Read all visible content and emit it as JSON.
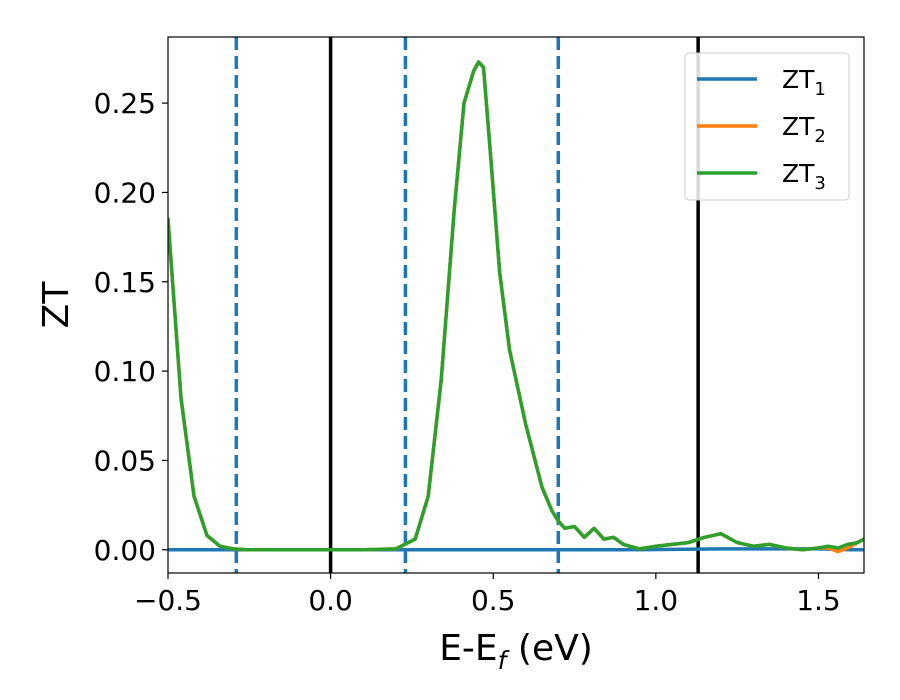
{
  "chart_data": {
    "type": "line",
    "xlabel": {
      "base": "E-E",
      "sub": "f",
      "suffix": " (eV)"
    },
    "ylabel": "ZT",
    "xlim": [
      -0.5,
      1.64
    ],
    "ylim": [
      -0.013,
      0.287
    ],
    "xticks": [
      {
        "value": -0.5,
        "label": "−0.5"
      },
      {
        "value": 0.0,
        "label": "0.0"
      },
      {
        "value": 0.5,
        "label": "0.5"
      },
      {
        "value": 1.0,
        "label": "1.0"
      },
      {
        "value": 1.5,
        "label": "1.5"
      }
    ],
    "yticks": [
      {
        "value": 0.0,
        "label": "0.00"
      },
      {
        "value": 0.05,
        "label": "0.05"
      },
      {
        "value": 0.1,
        "label": "0.10"
      },
      {
        "value": 0.15,
        "label": "0.15"
      },
      {
        "value": 0.2,
        "label": "0.20"
      },
      {
        "value": 0.25,
        "label": "0.25"
      }
    ],
    "grid": false,
    "legend_position": "top-right",
    "vlines": [
      {
        "x": -0.29,
        "style": "dashed",
        "color": "#1f77b4"
      },
      {
        "x": 0.0,
        "style": "solid",
        "color": "#000000"
      },
      {
        "x": 0.23,
        "style": "dashed",
        "color": "#1f77b4"
      },
      {
        "x": 0.7,
        "style": "dashed",
        "color": "#1f77b4"
      },
      {
        "x": 1.13,
        "style": "solid",
        "color": "#000000"
      }
    ],
    "series": [
      {
        "name": {
          "base": "ZT",
          "sub": "1"
        },
        "color": "#1f77b4",
        "x": [
          -0.5,
          -0.3,
          0.0,
          0.3,
          0.6,
          0.9,
          1.2,
          1.5,
          1.6,
          1.64
        ],
        "y": [
          0.0,
          0.0,
          0.0,
          0.0,
          0.0,
          0.0,
          0.0005,
          0.0005,
          0.0,
          0.0
        ]
      },
      {
        "name": {
          "base": "ZT",
          "sub": "2"
        },
        "color": "#ff7f0e",
        "x": [
          -0.5,
          -0.46,
          -0.42,
          -0.38,
          -0.34,
          -0.3,
          -0.26,
          -0.2,
          -0.1,
          0.0,
          0.1,
          0.2,
          0.26,
          0.3,
          0.34,
          0.38,
          0.41,
          0.44,
          0.455,
          0.47,
          0.49,
          0.52,
          0.55,
          0.6,
          0.65,
          0.68,
          0.7,
          0.72,
          0.75,
          0.78,
          0.81,
          0.84,
          0.87,
          0.9,
          0.95,
          1.0,
          1.05,
          1.1,
          1.15,
          1.2,
          1.25,
          1.3,
          1.35,
          1.4,
          1.45,
          1.5,
          1.53,
          1.56,
          1.59,
          1.62,
          1.64
        ],
        "y": [
          0.185,
          0.085,
          0.03,
          0.008,
          0.002,
          0.0005,
          0.0001,
          0.0,
          0.0,
          0.0,
          0.0,
          0.0005,
          0.006,
          0.03,
          0.095,
          0.19,
          0.25,
          0.268,
          0.273,
          0.27,
          0.225,
          0.155,
          0.112,
          0.07,
          0.035,
          0.022,
          0.016,
          0.012,
          0.013,
          0.007,
          0.012,
          0.006,
          0.007,
          0.003,
          0.0005,
          0.002,
          0.003,
          0.004,
          0.007,
          0.009,
          0.004,
          0.002,
          0.003,
          0.001,
          0.0,
          0.001,
          0.001,
          -0.001,
          0.001,
          0.004,
          0.006
        ]
      },
      {
        "name": {
          "base": "ZT",
          "sub": "3"
        },
        "color": "#2ca02c",
        "x": [
          -0.5,
          -0.46,
          -0.42,
          -0.38,
          -0.34,
          -0.3,
          -0.26,
          -0.2,
          -0.1,
          0.0,
          0.1,
          0.2,
          0.26,
          0.3,
          0.34,
          0.38,
          0.41,
          0.44,
          0.455,
          0.47,
          0.49,
          0.52,
          0.55,
          0.6,
          0.65,
          0.68,
          0.7,
          0.72,
          0.75,
          0.78,
          0.81,
          0.84,
          0.87,
          0.9,
          0.95,
          1.0,
          1.05,
          1.1,
          1.15,
          1.2,
          1.25,
          1.3,
          1.35,
          1.4,
          1.45,
          1.5,
          1.53,
          1.56,
          1.59,
          1.62,
          1.64
        ],
        "y": [
          0.185,
          0.085,
          0.03,
          0.008,
          0.002,
          0.0005,
          0.0001,
          0.0,
          0.0,
          0.0,
          0.0,
          0.0005,
          0.006,
          0.03,
          0.095,
          0.19,
          0.25,
          0.268,
          0.273,
          0.27,
          0.225,
          0.155,
          0.112,
          0.07,
          0.035,
          0.022,
          0.016,
          0.012,
          0.013,
          0.007,
          0.012,
          0.006,
          0.007,
          0.003,
          0.0005,
          0.002,
          0.003,
          0.004,
          0.007,
          0.009,
          0.004,
          0.002,
          0.003,
          0.001,
          0.0,
          0.001,
          0.002,
          0.001,
          0.003,
          0.004,
          0.006
        ]
      }
    ]
  }
}
